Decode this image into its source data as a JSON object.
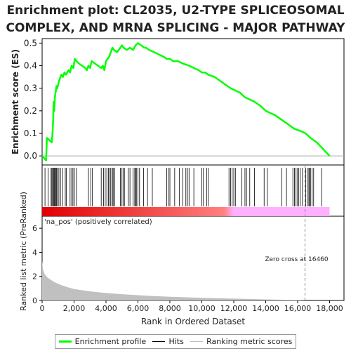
{
  "title_line1": "Enrichment plot: CL2035, U2-TYPE SPLICEOSOMAL",
  "title_line2": "COMPLEX, AND MRNA SPLICING - MAJOR PATHWAY",
  "colors": {
    "enrichment": "#00ff00",
    "hits": "#000000",
    "metric_fill": "#c0c0c0",
    "pos_band": "#ff0000",
    "neg_band": "#ffb0ff",
    "zero_line": "#aaaaaa",
    "pos_label": "#e05050"
  },
  "chart_data": [
    {
      "type": "line",
      "name": "enrichment-profile",
      "ylabel": "Enrichment score (ES)",
      "xlim": [
        0,
        18900
      ],
      "ylim": [
        -0.04,
        0.52
      ],
      "yticks": [
        0.0,
        0.1,
        0.2,
        0.3,
        0.4,
        0.5
      ],
      "ytick_labels": [
        "0.0",
        "0.1",
        "0.2",
        "0.3",
        "0.4",
        "0.5"
      ],
      "series": [
        {
          "name": "Enrichment profile",
          "x": [
            0,
            250,
            300,
            600,
            650,
            700,
            720,
            750,
            800,
            900,
            950,
            1050,
            1100,
            1200,
            1300,
            1400,
            1500,
            1650,
            1750,
            1850,
            1950,
            2050,
            2150,
            2300,
            2500,
            2700,
            2800,
            2900,
            3000,
            3100,
            3300,
            3500,
            3700,
            3800,
            3900,
            4000,
            4100,
            4200,
            4300,
            4400,
            4500,
            4700,
            4900,
            5000,
            5100,
            5300,
            5500,
            5700,
            5850,
            6000,
            6200,
            6400,
            6500,
            6700,
            7000,
            7300,
            7600,
            7800,
            8000,
            8200,
            8500,
            8800,
            9200,
            9500,
            9800,
            10000,
            10200,
            10400,
            10800,
            11200,
            11600,
            11800,
            12100,
            12400,
            12700,
            13000,
            13300,
            13700,
            14000,
            14300,
            14600,
            15000,
            15400,
            15800,
            16200,
            16500,
            16800,
            17200,
            17600,
            18000
          ],
          "y": [
            0.0,
            -0.02,
            0.08,
            0.06,
            0.1,
            0.17,
            0.24,
            0.2,
            0.26,
            0.31,
            0.3,
            0.33,
            0.34,
            0.36,
            0.35,
            0.37,
            0.36,
            0.38,
            0.37,
            0.4,
            0.39,
            0.43,
            0.42,
            0.41,
            0.4,
            0.39,
            0.38,
            0.4,
            0.39,
            0.42,
            0.41,
            0.4,
            0.39,
            0.4,
            0.38,
            0.42,
            0.43,
            0.44,
            0.46,
            0.48,
            0.47,
            0.46,
            0.48,
            0.49,
            0.48,
            0.47,
            0.48,
            0.47,
            0.49,
            0.5,
            0.49,
            0.48,
            0.48,
            0.47,
            0.46,
            0.45,
            0.44,
            0.43,
            0.43,
            0.42,
            0.42,
            0.41,
            0.4,
            0.39,
            0.38,
            0.37,
            0.37,
            0.36,
            0.35,
            0.33,
            0.31,
            0.3,
            0.29,
            0.28,
            0.26,
            0.25,
            0.24,
            0.22,
            0.2,
            0.19,
            0.18,
            0.16,
            0.14,
            0.12,
            0.11,
            0.1,
            0.08,
            0.06,
            0.03,
            0.0
          ]
        }
      ]
    },
    {
      "type": "bar",
      "name": "hits",
      "x_hits": [
        180,
        380,
        560,
        610,
        660,
        720,
        760,
        800,
        850,
        900,
        960,
        1050,
        1150,
        1280,
        1450,
        1520,
        1750,
        1850,
        1930,
        2020,
        2150,
        2900,
        3050,
        3150,
        3700,
        3850,
        3950,
        4050,
        4150,
        4250,
        4300,
        4400,
        4450,
        4550,
        4900,
        5000,
        5100,
        5150,
        5400,
        5500,
        5700,
        5800,
        5850,
        5900,
        6000,
        6100,
        6350,
        6600,
        6900,
        7800,
        7900,
        8000,
        8300,
        8600,
        8800,
        9000,
        9100,
        9200,
        9500,
        10000,
        10100,
        10300,
        10400,
        11700,
        11800,
        11900,
        12000,
        12100,
        12500,
        12700,
        12800,
        13000,
        13300,
        13900,
        14100,
        15000,
        15300,
        15700,
        15800,
        15900,
        16000,
        16050,
        16150,
        16300,
        16500,
        16600,
        16700,
        16750,
        16800,
        16900,
        17000,
        17500
      ]
    },
    {
      "type": "area",
      "name": "ranked-list-metric",
      "ylabel": "Ranked list metric (PreRanked)",
      "xlabel": "Rank in Ordered Dataset",
      "xlim": [
        0,
        18900
      ],
      "ylim": [
        0,
        7
      ],
      "yticks": [
        0,
        2,
        4,
        6
      ],
      "ytick_labels": [
        "0",
        "2",
        "4",
        "6"
      ],
      "xticks": [
        0,
        2000,
        4000,
        6000,
        8000,
        10000,
        12000,
        14000,
        16000,
        18000
      ],
      "xtick_labels": [
        "0",
        "2,000",
        "4,000",
        "6,000",
        "8,000",
        "10,000",
        "12,000",
        "14,000",
        "16,000",
        "18,000"
      ],
      "x": [
        0,
        50,
        150,
        300,
        500,
        800,
        1200,
        1600,
        2000,
        3000,
        4000,
        5000,
        6000,
        7000,
        8000,
        9000,
        10000,
        11000,
        12000,
        13000,
        14000,
        15000,
        16000,
        16460,
        18000
      ],
      "y": [
        3.3,
        2.6,
        2.2,
        1.95,
        1.75,
        1.5,
        1.28,
        1.1,
        0.95,
        0.75,
        0.62,
        0.52,
        0.44,
        0.37,
        0.31,
        0.26,
        0.22,
        0.18,
        0.15,
        0.12,
        0.09,
        0.06,
        0.03,
        0.0,
        0.0
      ],
      "zero_cross_x": 16460,
      "zero_cross_label": "Zero cross at 16460",
      "pos_label": "'na_pos' (positively correlated)"
    }
  ],
  "legend": {
    "items": [
      {
        "label": "Enrichment profile"
      },
      {
        "label": "Hits"
      },
      {
        "label": "Ranking metric scores"
      }
    ]
  }
}
